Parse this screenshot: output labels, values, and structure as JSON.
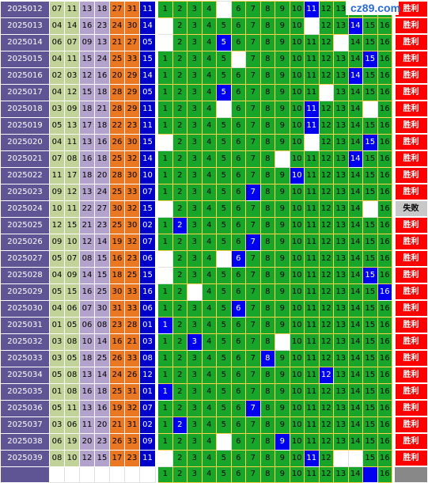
{
  "watermark": {
    "text": "cz89.com",
    "icon": "yellow-square-icon"
  },
  "colors": {
    "period_bg": "#5f5494",
    "pick_green": "#c2d39a",
    "pick_purple": "#b3a3cc",
    "pick_orange": "#ea7822",
    "blue_ball": "#0000c8",
    "grid_green": "#18a62a",
    "grid_border": "#ffd24a",
    "hit_blue": "#0000f0",
    "win_red": "#ff0000",
    "lose_gray": "#c8c8c8"
  },
  "chart_data": {
    "type": "table",
    "numbers": [
      1,
      2,
      3,
      4,
      5,
      6,
      7,
      8,
      9,
      10,
      11,
      12,
      13,
      14,
      15,
      16
    ],
    "status_labels": {
      "win": "胜利",
      "lose": "失败"
    },
    "rows": [
      {
        "period": "2025012",
        "reds": [
          "07",
          "11",
          "13",
          "18",
          "27",
          "31"
        ],
        "blue": "11",
        "hit": 11,
        "missing": [
          5
        ],
        "status": "win"
      },
      {
        "period": "2025013",
        "reds": [
          "04",
          "14",
          "16",
          "23",
          "24",
          "30"
        ],
        "blue": "14",
        "hit": 14,
        "missing": [
          1,
          11
        ],
        "status": "win"
      },
      {
        "period": "2025014",
        "reds": [
          "06",
          "07",
          "09",
          "13",
          "21",
          "27"
        ],
        "blue": "05",
        "hit": 5,
        "missing": [
          1,
          13
        ],
        "status": "win"
      },
      {
        "period": "2025015",
        "reds": [
          "04",
          "11",
          "15",
          "24",
          "25",
          "33"
        ],
        "blue": "15",
        "hit": 15,
        "missing": [
          6
        ],
        "status": "win"
      },
      {
        "period": "2025016",
        "reds": [
          "02",
          "03",
          "12",
          "16",
          "20",
          "29"
        ],
        "blue": "14",
        "hit": 14,
        "missing": [],
        "status": "win"
      },
      {
        "period": "2025017",
        "reds": [
          "04",
          "12",
          "15",
          "18",
          "28",
          "29"
        ],
        "blue": "05",
        "hit": 5,
        "missing": [
          12
        ],
        "status": "win"
      },
      {
        "period": "2025018",
        "reds": [
          "03",
          "09",
          "18",
          "21",
          "28",
          "29"
        ],
        "blue": "11",
        "hit": 11,
        "missing": [
          5,
          15
        ],
        "status": "win"
      },
      {
        "period": "2025019",
        "reds": [
          "05",
          "13",
          "17",
          "18",
          "22",
          "23"
        ],
        "blue": "11",
        "hit": 11,
        "missing": [],
        "status": "win"
      },
      {
        "period": "2025020",
        "reds": [
          "04",
          "11",
          "13",
          "16",
          "26",
          "30"
        ],
        "blue": "15",
        "hit": 15,
        "missing": [
          1,
          11
        ],
        "status": "win"
      },
      {
        "period": "2025021",
        "reds": [
          "07",
          "08",
          "16",
          "18",
          "25",
          "32"
        ],
        "blue": "14",
        "hit": 14,
        "missing": [
          9
        ],
        "status": "win"
      },
      {
        "period": "2025022",
        "reds": [
          "11",
          "17",
          "18",
          "20",
          "28",
          "30"
        ],
        "blue": "10",
        "hit": 10,
        "missing": [],
        "status": "win"
      },
      {
        "period": "2025023",
        "reds": [
          "09",
          "12",
          "13",
          "24",
          "25",
          "33"
        ],
        "blue": "07",
        "hit": 7,
        "missing": [],
        "status": "win"
      },
      {
        "period": "2025024",
        "reds": [
          "10",
          "11",
          "22",
          "27",
          "30",
          "32"
        ],
        "blue": "15",
        "hit": null,
        "missing": [
          1,
          15
        ],
        "status": "lose"
      },
      {
        "period": "2025025",
        "reds": [
          "12",
          "15",
          "21",
          "23",
          "25",
          "30"
        ],
        "blue": "02",
        "hit": 2,
        "missing": [],
        "status": "win"
      },
      {
        "period": "2025026",
        "reds": [
          "09",
          "10",
          "12",
          "14",
          "19",
          "32"
        ],
        "blue": "07",
        "hit": 7,
        "missing": [],
        "status": "win"
      },
      {
        "period": "2025027",
        "reds": [
          "05",
          "07",
          "08",
          "15",
          "16",
          "23"
        ],
        "blue": "06",
        "hit": 6,
        "missing": [
          1,
          5
        ],
        "status": "win"
      },
      {
        "period": "2025028",
        "reds": [
          "04",
          "09",
          "14",
          "15",
          "18",
          "25"
        ],
        "blue": "15",
        "hit": 15,
        "missing": [
          1
        ],
        "status": "win"
      },
      {
        "period": "2025029",
        "reds": [
          "05",
          "15",
          "16",
          "25",
          "30",
          "33"
        ],
        "blue": "16",
        "hit": 16,
        "missing": [
          3
        ],
        "status": "win"
      },
      {
        "period": "2025030",
        "reds": [
          "04",
          "06",
          "07",
          "30",
          "31",
          "33"
        ],
        "blue": "06",
        "hit": 6,
        "missing": [],
        "status": "win"
      },
      {
        "period": "2025031",
        "reds": [
          "01",
          "05",
          "06",
          "08",
          "23",
          "28"
        ],
        "blue": "01",
        "hit": 1,
        "missing": [],
        "status": "win"
      },
      {
        "period": "2025032",
        "reds": [
          "03",
          "08",
          "10",
          "14",
          "16",
          "21"
        ],
        "blue": "03",
        "hit": 3,
        "missing": [
          9
        ],
        "status": "win"
      },
      {
        "period": "2025033",
        "reds": [
          "03",
          "05",
          "18",
          "25",
          "26",
          "33"
        ],
        "blue": "08",
        "hit": 8,
        "missing": [],
        "status": "win"
      },
      {
        "period": "2025034",
        "reds": [
          "05",
          "08",
          "13",
          "14",
          "24",
          "26"
        ],
        "blue": "12",
        "hit": 12,
        "missing": [],
        "status": "win"
      },
      {
        "period": "2025035",
        "reds": [
          "01",
          "08",
          "16",
          "18",
          "25",
          "31"
        ],
        "blue": "01",
        "hit": 1,
        "missing": [],
        "status": "win"
      },
      {
        "period": "2025036",
        "reds": [
          "05",
          "11",
          "13",
          "16",
          "19",
          "32"
        ],
        "blue": "07",
        "hit": 7,
        "missing": [],
        "status": "win"
      },
      {
        "period": "2025037",
        "reds": [
          "03",
          "06",
          "11",
          "20",
          "21",
          "31"
        ],
        "blue": "02",
        "hit": 2,
        "missing": [],
        "status": "win"
      },
      {
        "period": "2025038",
        "reds": [
          "06",
          "19",
          "20",
          "23",
          "26",
          "33"
        ],
        "blue": "09",
        "hit": 9,
        "missing": [
          5
        ],
        "status": "win"
      },
      {
        "period": "2025039",
        "reds": [
          "08",
          "10",
          "12",
          "15",
          "17",
          "23"
        ],
        "blue": "11",
        "hit": 11,
        "missing": [
          1,
          13,
          14
        ],
        "status": "win"
      }
    ],
    "forecast_row": {
      "hit": 15,
      "missing": []
    }
  }
}
